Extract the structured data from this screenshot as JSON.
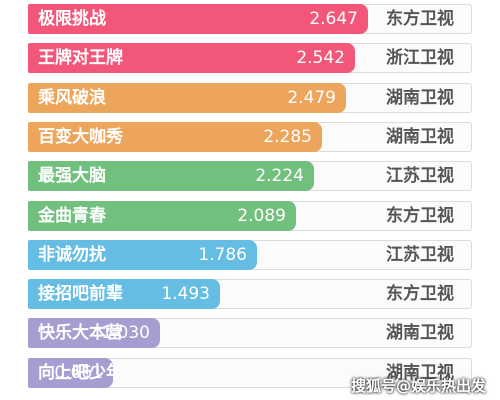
{
  "chart_data": {
    "type": "bar",
    "orientation": "horizontal",
    "categories": [
      "极限挑战",
      "王牌对王牌",
      "乘风破浪",
      "百变大咖秀",
      "最强大脑",
      "金曲青春",
      "非诚勿扰",
      "接招吧前辈",
      "快乐大本营",
      "向上吧少年"
    ],
    "values": [
      2.647,
      2.542,
      2.479,
      2.285,
      2.224,
      2.089,
      1.786,
      1.493,
      1.03,
      0.661
    ],
    "value_labels": [
      "2.647",
      "2.542",
      "2.479",
      "2.285",
      "2.224",
      "2.089",
      "1.786",
      "1.493",
      "1.030",
      "0.661"
    ],
    "channels": [
      "东方卫视",
      "浙江卫视",
      "湖南卫视",
      "湖南卫视",
      "江苏卫视",
      "东方卫视",
      "江苏卫视",
      "东方卫视",
      "湖南卫视",
      "湖南卫视"
    ],
    "colors": [
      "#f2577a",
      "#f2577a",
      "#eda55c",
      "#eda55c",
      "#72c07e",
      "#72c07e",
      "#66bde3",
      "#66bde3",
      "#a59ed0",
      "#a59ed0"
    ],
    "title": "",
    "xlabel": "",
    "ylabel": "",
    "grid": false,
    "legend": "none"
  },
  "watermark": "搜狐号@娱乐热出发"
}
